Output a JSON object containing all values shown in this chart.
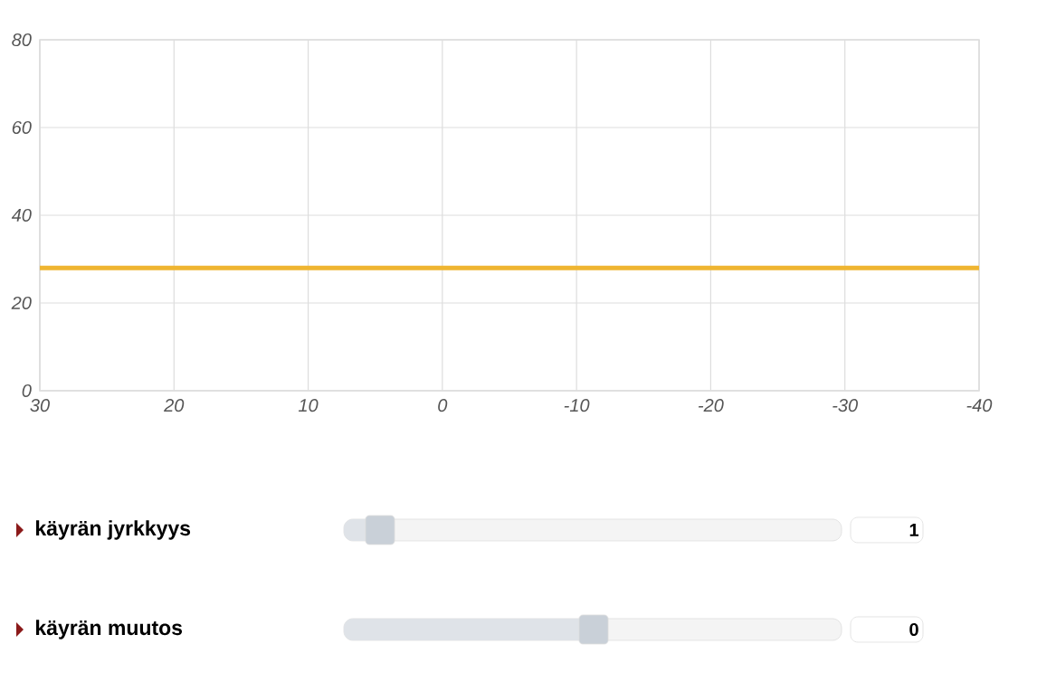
{
  "chart_data": {
    "type": "line",
    "xlim": [
      30,
      -40
    ],
    "ylim": [
      0,
      80
    ],
    "xticks": [
      30,
      20,
      10,
      0,
      -10,
      -20,
      -30,
      -40
    ],
    "yticks": [
      0,
      20,
      40,
      60,
      80
    ],
    "grid": true,
    "x": [
      30,
      -40
    ],
    "series": [
      {
        "color": "#efb531",
        "values": [
          28,
          28
        ]
      }
    ],
    "annotations": [
      "käyrän jyrkkyys",
      "1",
      "käyrän muutos",
      "0"
    ]
  }
}
